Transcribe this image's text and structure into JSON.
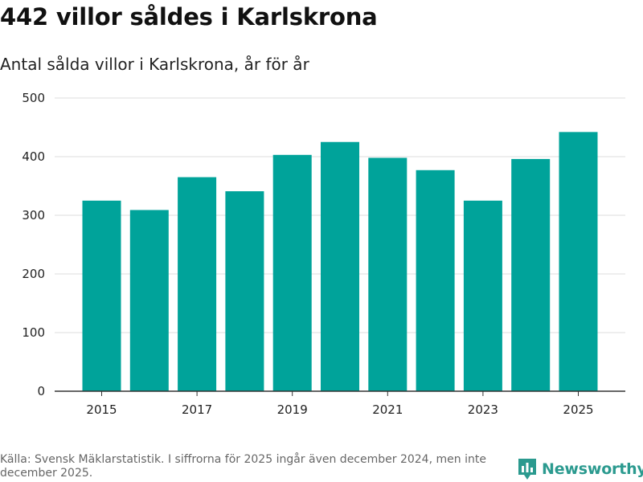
{
  "title": "442 villor såldes i Karlskrona",
  "subtitle": "Antal sålda villor i Karlskrona, år för år",
  "source": "Källa: Svensk Mäklarstatistik. I siffrorna för 2025 ingår även december 2024, men inte december 2025.",
  "brand": {
    "name": "Newsworthy",
    "icon": "newsworthy-logo-icon",
    "color": "#2b9a8f"
  },
  "colors": {
    "bar": "#00a39a",
    "grid": "#dddddd",
    "axis": "#333333"
  },
  "chart_data": {
    "type": "bar",
    "title": "442 villor såldes i Karlskrona",
    "subtitle": "Antal sålda villor i Karlskrona, år för år",
    "xlabel": "",
    "ylabel": "",
    "categories": [
      "2015",
      "2016",
      "2017",
      "2018",
      "2019",
      "2020",
      "2021",
      "2022",
      "2023",
      "2024",
      "2025"
    ],
    "values": [
      325,
      309,
      365,
      341,
      403,
      425,
      398,
      377,
      325,
      396,
      442
    ],
    "x_tick_labels": [
      "2015",
      "2017",
      "2019",
      "2021",
      "2023",
      "2025"
    ],
    "y_ticks": [
      0,
      100,
      200,
      300,
      400,
      500
    ],
    "ylim": [
      0,
      500
    ],
    "grid": true,
    "legend": "none"
  }
}
